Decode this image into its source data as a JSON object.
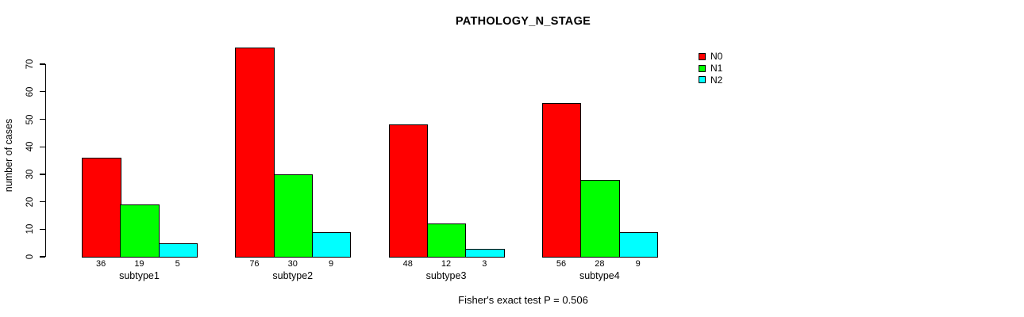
{
  "chart_data": {
    "type": "bar",
    "title": "PATHOLOGY_N_STAGE",
    "xlabel": "",
    "ylabel": "number of cases",
    "categories": [
      "subtype1",
      "subtype2",
      "subtype3",
      "subtype4"
    ],
    "series": [
      {
        "name": "N0",
        "color": "#FF0000",
        "values": [
          36,
          76,
          48,
          56
        ]
      },
      {
        "name": "N1",
        "color": "#00FF00",
        "values": [
          19,
          30,
          12,
          28
        ]
      },
      {
        "name": "N2",
        "color": "#00FFFF",
        "values": [
          5,
          9,
          3,
          9
        ]
      }
    ],
    "yticks": [
      0,
      10,
      20,
      30,
      40,
      50,
      60,
      70
    ],
    "ylim": [
      0,
      70
    ],
    "grid": false,
    "legend_position": "top-right",
    "bar_value_labels": true,
    "annotation": "Fisher's exact test P = 0.506"
  }
}
